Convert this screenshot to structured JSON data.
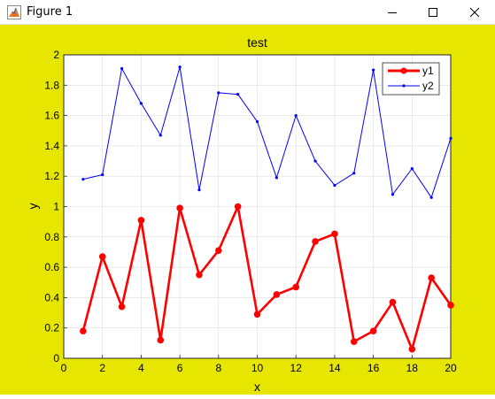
{
  "window": {
    "title": "Figure 1"
  },
  "colors": {
    "figure_bg": "#e6e600",
    "y1": "#ff0000",
    "y2": "#0000ff"
  },
  "icons": {
    "app": "matlab-figure-icon",
    "minimize": "minimize-icon",
    "maximize": "maximize-icon",
    "close": "close-icon"
  },
  "chart_data": {
    "type": "line",
    "title": "test",
    "xlabel": "x",
    "ylabel": "y",
    "xlim": [
      0,
      20
    ],
    "ylim": [
      0,
      2
    ],
    "grid": true,
    "legend_position": "top-right",
    "x_ticks": [
      "0",
      "2",
      "4",
      "6",
      "8",
      "10",
      "12",
      "14",
      "16",
      "18",
      "20"
    ],
    "y_ticks": [
      "0",
      "0.2",
      "0.4",
      "0.6",
      "0.8",
      "1",
      "1.2",
      "1.4",
      "1.6",
      "1.8",
      "2"
    ],
    "x": [
      1,
      2,
      3,
      4,
      5,
      6,
      7,
      8,
      9,
      10,
      11,
      12,
      13,
      14,
      15,
      16,
      17,
      18,
      19,
      20
    ],
    "series": [
      {
        "name": "y1",
        "color": "#ff0000",
        "marker": "circle",
        "values": [
          0.18,
          0.67,
          0.34,
          0.91,
          0.12,
          0.99,
          0.55,
          0.71,
          1.0,
          0.29,
          0.42,
          0.47,
          0.77,
          0.82,
          0.11,
          0.18,
          0.37,
          0.06,
          0.53,
          0.35
        ]
      },
      {
        "name": "y2",
        "color": "#0000ff",
        "marker": "point",
        "values": [
          1.18,
          1.21,
          1.91,
          1.68,
          1.47,
          1.92,
          1.11,
          1.75,
          1.74,
          1.56,
          1.19,
          1.6,
          1.3,
          1.14,
          1.22,
          1.9,
          1.08,
          1.25,
          1.06,
          1.45
        ]
      }
    ]
  }
}
